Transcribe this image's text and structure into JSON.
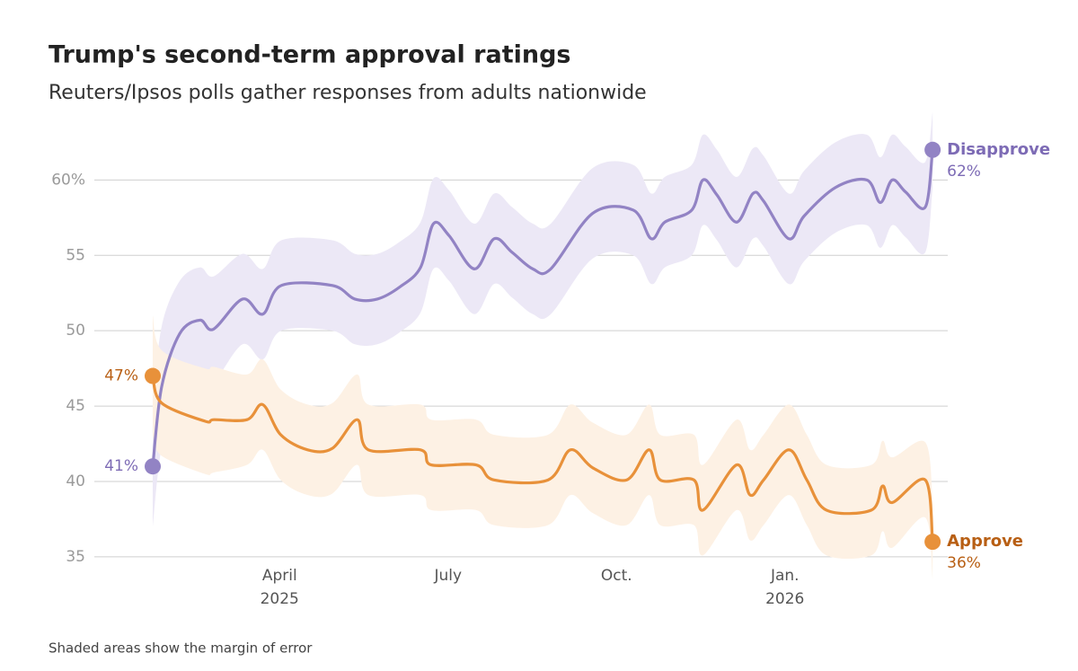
{
  "chart_data": {
    "type": "line",
    "title": "Trump's second-term approval ratings",
    "subtitle": "Reuters/Ipsos polls gather responses from adults nationwide",
    "note": "Shaded areas show the margin of error",
    "xlim": [
      -0.3,
      14.9
    ],
    "xticks": [
      {
        "value": 3,
        "label": "April"
      },
      {
        "value": 6,
        "label": "July"
      },
      {
        "value": 9,
        "label": "Oct."
      },
      {
        "value": 12,
        "label": "Jan."
      }
    ],
    "xtick_years": [
      {
        "value": 3,
        "label": "2025"
      },
      {
        "value": 12,
        "label": "2026"
      }
    ],
    "ylim": [
      34.4,
      63
    ],
    "yticks": [
      {
        "value": 60,
        "label": "60%"
      },
      55,
      50,
      45,
      40,
      35
    ],
    "grid": true,
    "series": [
      {
        "name": "Disapprove",
        "color": "#9283c4",
        "label_color": "#7d6bb5",
        "band_color": "#ece8f6",
        "x": [
          0.74,
          0.9,
          1.22,
          1.58,
          1.82,
          2.34,
          2.7,
          3.03,
          3.94,
          4.34,
          4.74,
          5.14,
          5.51,
          5.74,
          6.02,
          6.47,
          6.82,
          7.14,
          7.51,
          7.83,
          8.58,
          9.3,
          9.62,
          9.86,
          10.34,
          10.54,
          10.79,
          11.14,
          11.43,
          11.62,
          12.07,
          12.34,
          12.9,
          13.46,
          13.7,
          13.91,
          14.15,
          14.5,
          14.63
        ],
        "values": [
          41,
          46.3,
          49.8,
          50.7,
          50.1,
          52.1,
          51.1,
          53,
          53,
          52.1,
          52.1,
          52.9,
          54.2,
          57.1,
          56.3,
          54.1,
          56.1,
          55.2,
          54.1,
          54.1,
          57.8,
          58,
          56.1,
          57.2,
          58,
          60,
          59,
          57.2,
          59.1,
          58.6,
          56.1,
          57.6,
          59.5,
          60,
          58.5,
          60,
          59.2,
          58.2,
          62
        ],
        "margin": [
          4,
          4,
          3.5,
          3.5,
          3.5,
          3,
          3,
          3,
          3,
          3,
          3,
          3,
          3,
          3,
          3,
          3,
          3,
          3,
          3,
          3,
          3,
          3,
          3,
          3,
          3,
          3,
          3,
          3,
          3,
          3,
          3,
          3,
          3,
          3,
          3,
          3,
          3,
          3,
          2.5
        ],
        "value_labels": [
          "41%",
          null,
          null,
          null,
          null,
          null,
          null,
          null,
          null,
          null,
          null,
          null,
          null,
          null,
          null,
          null,
          null,
          null,
          null,
          null,
          null,
          null,
          null,
          null,
          null,
          null,
          null,
          null,
          null,
          null,
          null,
          null,
          null,
          null,
          null,
          null,
          null,
          null,
          "62%"
        ]
      },
      {
        "name": "Approve",
        "color": "#e8913a",
        "label_color": "#b85f14",
        "band_color": "#fdf1e4",
        "x": [
          0.74,
          0.9,
          1.67,
          1.83,
          2.42,
          2.7,
          3.02,
          3.5,
          3.94,
          4.38,
          4.58,
          5.51,
          5.7,
          6.5,
          6.82,
          7.78,
          8.18,
          8.58,
          9.18,
          9.58,
          9.78,
          10.38,
          10.54,
          11.14,
          11.38,
          11.62,
          12.07,
          12.39,
          12.74,
          13.54,
          13.74,
          13.91,
          14.5,
          14.63
        ],
        "values": [
          47,
          45.2,
          44,
          44.1,
          44.1,
          45.1,
          43.1,
          42.1,
          42.2,
          44.1,
          42.1,
          42.1,
          41.1,
          41.1,
          40.1,
          40.1,
          42.1,
          40.9,
          40.1,
          42.1,
          40.1,
          40.1,
          38.1,
          41.1,
          39.1,
          40.1,
          42.1,
          40.1,
          38.1,
          38.1,
          39.7,
          38.6,
          40.1,
          36
        ],
        "margin": [
          4,
          3.5,
          3.5,
          3.5,
          3,
          3,
          3,
          3,
          3,
          3,
          3,
          3,
          3,
          3,
          3,
          3,
          3,
          3,
          3,
          3,
          3,
          3,
          3,
          3,
          3,
          3,
          3,
          3,
          3,
          3,
          3,
          3,
          2.5,
          2.5
        ],
        "value_labels": [
          "47%",
          null,
          null,
          null,
          null,
          null,
          null,
          null,
          null,
          null,
          null,
          null,
          null,
          null,
          null,
          null,
          null,
          null,
          null,
          null,
          null,
          null,
          null,
          null,
          null,
          null,
          null,
          null,
          null,
          null,
          null,
          null,
          null,
          "36%"
        ]
      }
    ]
  }
}
